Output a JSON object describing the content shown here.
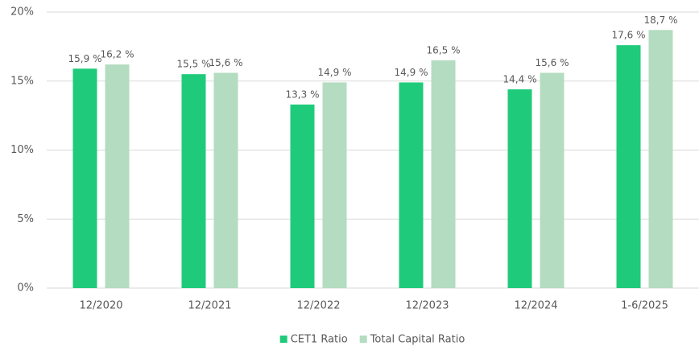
{
  "chart_data": {
    "type": "bar",
    "categories": [
      "12/2020",
      "12/2021",
      "12/2022",
      "12/2023",
      "12/2024",
      "1-6/2025"
    ],
    "series": [
      {
        "name": "CET1 Ratio",
        "color": "#1fcb7a",
        "values": [
          15.9,
          15.5,
          13.3,
          14.9,
          14.4,
          17.6
        ],
        "value_labels": [
          "15,9 %",
          "15,5 %",
          "13,3 %",
          "14,9 %",
          "14,4 %",
          "17,6 %"
        ]
      },
      {
        "name": "Total Capital Ratio",
        "color": "#b3dcc0",
        "values": [
          16.2,
          15.6,
          14.9,
          16.5,
          15.6,
          18.7
        ],
        "value_labels": [
          "16,2 %",
          "15,6 %",
          "14,9 %",
          "16,5 %",
          "15,6 %",
          "18,7 %"
        ]
      }
    ],
    "ylim": [
      0,
      20
    ],
    "yticks": [
      {
        "value": 0,
        "label": "0%"
      },
      {
        "value": 5,
        "label": "5%"
      },
      {
        "value": 10,
        "label": "10%"
      },
      {
        "value": 15,
        "label": "15%"
      },
      {
        "value": 20,
        "label": "20%"
      }
    ],
    "grid": true,
    "legend": "bottom"
  }
}
